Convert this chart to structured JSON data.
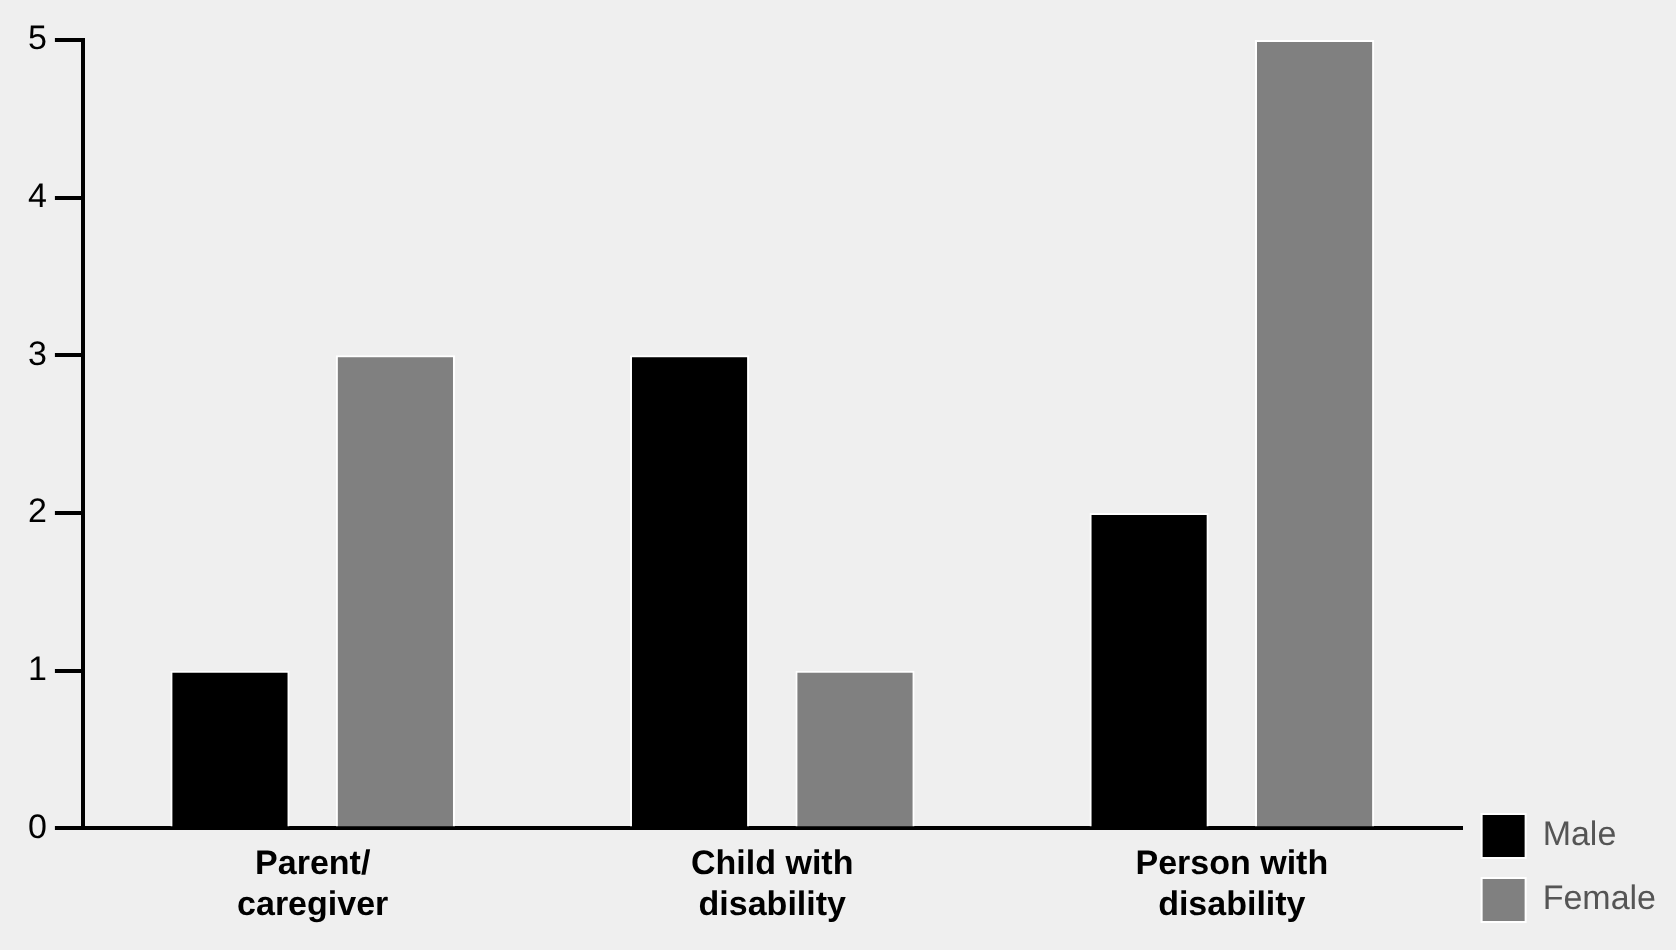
{
  "chart_data": {
    "type": "bar",
    "categories": [
      "Parent/ caregiver",
      "Child with disability",
      "Person with disability"
    ],
    "series": [
      {
        "name": "Male",
        "color": "#000000",
        "values": [
          1,
          3,
          2
        ]
      },
      {
        "name": "Female",
        "color": "#808080",
        "values": [
          3,
          1,
          5
        ]
      }
    ],
    "ylim": [
      0,
      5
    ],
    "yticks": [
      0,
      1,
      2,
      3,
      4,
      5
    ],
    "grid": false,
    "legend": "bottom right"
  }
}
